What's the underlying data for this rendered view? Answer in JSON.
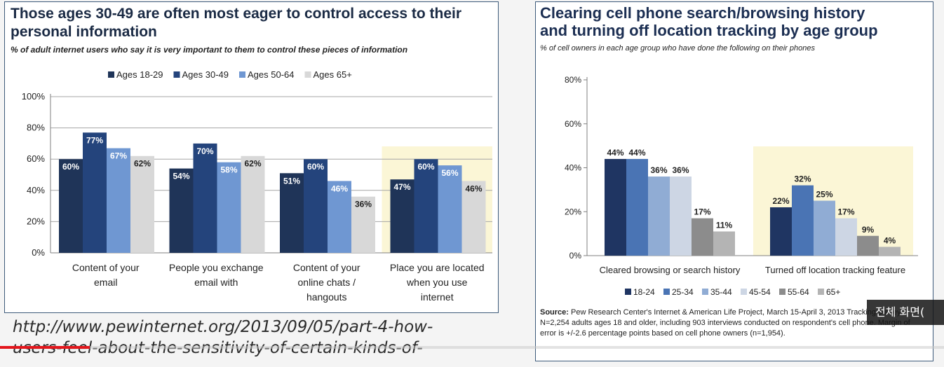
{
  "left": {
    "title_line1": "Those ages 30-49 are often most eager to control access to their",
    "title_line2": "personal information",
    "subtitle": "% of adult internet users who say it is very important to them to control these pieces of information"
  },
  "right": {
    "title_line1": "Clearing cell phone search/browsing history",
    "title_line2": "and turning off location tracking by age group",
    "subtitle": "% of cell owners in each age group who have done the following on their phones",
    "source_label": "Source:",
    "source_text": " Pew Research Center's Internet & American Life Project, March 15-April 3, 2013 Tracking survey. N=2,254 adults ages 18 and older, including 903 interviews conducted on respondent's cell phone. Margin of error is +/-2.6 percentage points based on cell phone owners (n=1,954)."
  },
  "url_line1": "http://www.pewinternet.org/2013/09/05/part-4-how-",
  "url_line2": "users-feel-about-the-sensitivity-of-certain-kinds-of-",
  "overlay_text": "전체 화면(",
  "video_progress": 0.095,
  "colors": {
    "progress": "#e3161c",
    "highlight": "#fbf6d6"
  },
  "chart_data": [
    {
      "type": "bar",
      "categories": [
        [
          "Content of your",
          "email"
        ],
        [
          "People you exchange",
          "email with"
        ],
        [
          "Content of your",
          "online chats /",
          "hangouts"
        ],
        [
          "Place you are located",
          "when you use",
          "internet"
        ]
      ],
      "series": [
        {
          "name": "Ages 18-29",
          "values": [
            60,
            54,
            51,
            47
          ],
          "color": "#1f3458"
        },
        {
          "name": "Ages 30-49",
          "values": [
            77,
            70,
            60,
            60
          ],
          "color": "#24447c"
        },
        {
          "name": "Ages 50-64",
          "values": [
            67,
            58,
            46,
            56
          ],
          "color": "#6f97d2"
        },
        {
          "name": "Ages 65+",
          "values": [
            62,
            62,
            36,
            46
          ],
          "color": "#d8d8d8"
        }
      ],
      "yticks": [
        "0%",
        "20%",
        "40%",
        "60%",
        "80%",
        "100%"
      ],
      "ylim": [
        0,
        100
      ],
      "highlight_category": 3,
      "legend": "top"
    },
    {
      "type": "bar",
      "categories": [
        [
          "Cleared browsing or search history"
        ],
        [
          "Turned off location tracking feature"
        ]
      ],
      "series": [
        {
          "name": "18-24",
          "values": [
            44,
            22
          ],
          "color": "#1f3562"
        },
        {
          "name": "25-34",
          "values": [
            44,
            32
          ],
          "color": "#4a74b4"
        },
        {
          "name": "35-44",
          "values": [
            36,
            25
          ],
          "color": "#90acd4"
        },
        {
          "name": "45-54",
          "values": [
            36,
            17
          ],
          "color": "#cdd6e4"
        },
        {
          "name": "55-64",
          "values": [
            17,
            9
          ],
          "color": "#8c8c8c"
        },
        {
          "name": "65+",
          "values": [
            11,
            4
          ],
          "color": "#b4b4b4"
        }
      ],
      "yticks": [
        "0%",
        "20%",
        "40%",
        "60%",
        "80%"
      ],
      "ylim": [
        0,
        80
      ],
      "highlight_category": 1,
      "legend": "bottom"
    }
  ]
}
